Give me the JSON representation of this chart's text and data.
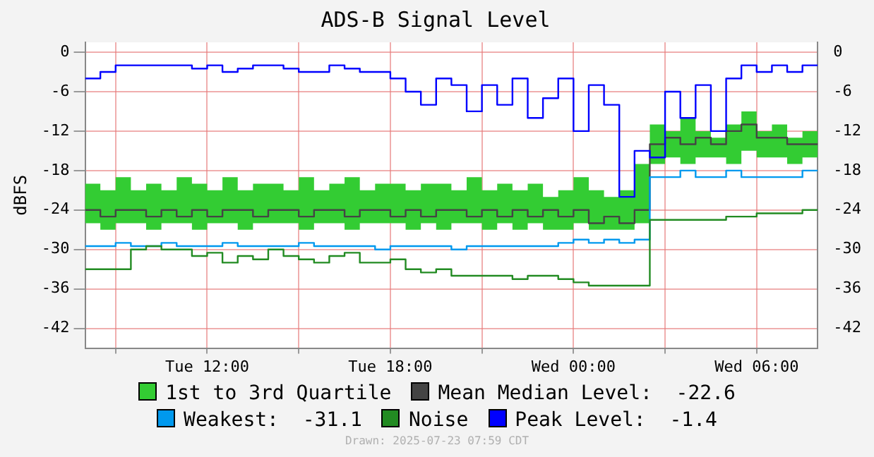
{
  "chart_data": {
    "type": "step",
    "title": "ADS-B Signal Level",
    "ylabel": "dBFS",
    "x": [
      "2025-07-22T08:00",
      "2025-07-22T08:30",
      "2025-07-22T09:00",
      "2025-07-22T09:30",
      "2025-07-22T10:00",
      "2025-07-22T10:30",
      "2025-07-22T11:00",
      "2025-07-22T11:30",
      "2025-07-22T12:00",
      "2025-07-22T12:30",
      "2025-07-22T13:00",
      "2025-07-22T13:30",
      "2025-07-22T14:00",
      "2025-07-22T14:30",
      "2025-07-22T15:00",
      "2025-07-22T15:30",
      "2025-07-22T16:00",
      "2025-07-22T16:30",
      "2025-07-22T17:00",
      "2025-07-22T17:30",
      "2025-07-22T18:00",
      "2025-07-22T18:30",
      "2025-07-22T19:00",
      "2025-07-22T19:30",
      "2025-07-22T20:00",
      "2025-07-22T20:30",
      "2025-07-22T21:00",
      "2025-07-22T21:30",
      "2025-07-22T22:00",
      "2025-07-22T22:30",
      "2025-07-22T23:00",
      "2025-07-22T23:30",
      "2025-07-23T00:00",
      "2025-07-23T00:30",
      "2025-07-23T01:00",
      "2025-07-23T01:30",
      "2025-07-23T02:00",
      "2025-07-23T02:30",
      "2025-07-23T03:00",
      "2025-07-23T03:30",
      "2025-07-23T04:00",
      "2025-07-23T04:30",
      "2025-07-23T05:00",
      "2025-07-23T05:30",
      "2025-07-23T06:00",
      "2025-07-23T06:30",
      "2025-07-23T07:00",
      "2025-07-23T07:30",
      "2025-07-23T08:00"
    ],
    "xlim": [
      "2025-07-22T08:00",
      "2025-07-23T08:00"
    ],
    "xticks": [
      {
        "value": "2025-07-22T09:00",
        "label": null
      },
      {
        "value": "2025-07-22T12:00",
        "label": "Tue 12:00"
      },
      {
        "value": "2025-07-22T15:00",
        "label": null
      },
      {
        "value": "2025-07-22T18:00",
        "label": "Tue 18:00"
      },
      {
        "value": "2025-07-22T21:00",
        "label": null
      },
      {
        "value": "2025-07-23T00:00",
        "label": "Wed 00:00"
      },
      {
        "value": "2025-07-23T03:00",
        "label": null
      },
      {
        "value": "2025-07-23T06:00",
        "label": "Wed 06:00"
      }
    ],
    "ylim": [
      -45,
      1.5
    ],
    "yticks": [
      0,
      -6,
      -12,
      -18,
      -24,
      -30,
      -36,
      -42
    ],
    "y2lim": [
      -45,
      1.5
    ],
    "y2ticks": [
      0,
      -6,
      -12,
      -18,
      -24,
      -30,
      -36,
      -42
    ],
    "grid": true,
    "legend": "bottom",
    "series": [
      {
        "name": "Mean Median Level:  -22.6",
        "color": "#444444",
        "values": [
          -24,
          -25,
          -24,
          -24,
          -25,
          -24,
          -25,
          -24,
          -25,
          -24,
          -24,
          -25,
          -24,
          -24,
          -25,
          -24,
          -24,
          -25,
          -24,
          -24,
          -25,
          -24,
          -25,
          -24,
          -24,
          -25,
          -24,
          -25,
          -24,
          -25,
          -24,
          -25,
          -24,
          -26,
          -25,
          -26,
          -24,
          -14,
          -13,
          -14,
          -13,
          -14,
          -12,
          -11,
          -13,
          -13,
          -14,
          -14,
          -14
        ],
        "lower": [
          -26,
          -27,
          -26,
          -26,
          -27,
          -26,
          -26,
          -27,
          -26,
          -26,
          -27,
          -26,
          -26,
          -26,
          -27,
          -26,
          -26,
          -27,
          -26,
          -26,
          -26,
          -27,
          -26,
          -27,
          -26,
          -26,
          -27,
          -26,
          -27,
          -26,
          -27,
          -27,
          -26,
          -27,
          -27,
          -27,
          -26,
          -17,
          -16,
          -17,
          -16,
          -16,
          -17,
          -15,
          -16,
          -16,
          -17,
          -16,
          -16
        ],
        "upper": [
          -20,
          -21,
          -19,
          -21,
          -20,
          -21,
          -19,
          -20,
          -21,
          -19,
          -21,
          -20,
          -20,
          -21,
          -19,
          -21,
          -20,
          -19,
          -21,
          -20,
          -20,
          -21,
          -20,
          -20,
          -21,
          -19,
          -21,
          -20,
          -21,
          -20,
          -22,
          -21,
          -19,
          -21,
          -22,
          -21,
          -17,
          -11,
          -12,
          -10,
          -12,
          -13,
          -11,
          -9,
          -12,
          -11,
          -13,
          -12,
          -12
        ]
      },
      {
        "name": "Weakest:  -31.1",
        "color": "#0099ee",
        "values": [
          -29.5,
          -29.5,
          -29,
          -29.5,
          -29.5,
          -29,
          -29.5,
          -29.5,
          -29.5,
          -29,
          -29.5,
          -29.5,
          -29.5,
          -29.5,
          -29,
          -29.5,
          -29.5,
          -29.5,
          -29.5,
          -30,
          -29.5,
          -29.5,
          -29.5,
          -29.5,
          -30,
          -29.5,
          -29.5,
          -29.5,
          -29.5,
          -29.5,
          -29.5,
          -29,
          -28.5,
          -29,
          -28.5,
          -29,
          -28.5,
          -19,
          -19,
          -18,
          -19,
          -19,
          -18,
          -19,
          -19,
          -19,
          -19,
          -18,
          -18
        ]
      },
      {
        "name": "Noise",
        "color": "#228b22",
        "values": [
          -33,
          -33,
          -33,
          -30,
          -29.5,
          -30,
          -30,
          -31,
          -30.5,
          -32,
          -31,
          -31.5,
          -30,
          -31,
          -31.5,
          -32,
          -31,
          -30.5,
          -32,
          -32,
          -31.5,
          -33,
          -33.5,
          -33,
          -34,
          -34,
          -34,
          -34,
          -34.5,
          -34,
          -34,
          -34.5,
          -35,
          -35.5,
          -35.5,
          -35.5,
          -35.5,
          -25.5,
          -25.5,
          -25.5,
          -25.5,
          -25.5,
          -25,
          -25,
          -24.5,
          -24.5,
          -24.5,
          -24,
          -24
        ]
      },
      {
        "name": "Peak Level:  -1.4",
        "color": "#0000ff",
        "values": [
          -4,
          -3,
          -2,
          -2,
          -2,
          -2,
          -2,
          -2.5,
          -2,
          -3,
          -2.5,
          -2,
          -2,
          -2.5,
          -3,
          -3,
          -2,
          -2.5,
          -3,
          -3,
          -4,
          -6,
          -8,
          -4,
          -5,
          -9,
          -5,
          -8,
          -4,
          -10,
          -7,
          -4,
          -12,
          -5,
          -8,
          -22,
          -15,
          -16,
          -6,
          -10,
          -5,
          -12,
          -4,
          -2,
          -3,
          -2,
          -3,
          -2,
          -2
        ]
      }
    ],
    "annotations": [
      "1st to 3rd Quartile",
      "Drawn: 2025-07-23 07:59 CDT"
    ]
  }
}
